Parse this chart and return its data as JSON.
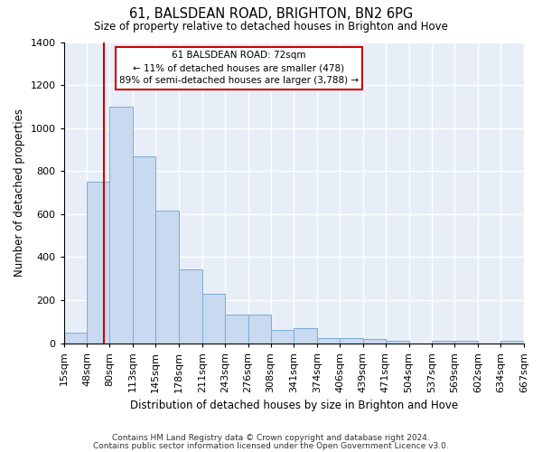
{
  "title1": "61, BALSDEAN ROAD, BRIGHTON, BN2 6PG",
  "title2": "Size of property relative to detached houses in Brighton and Hove",
  "xlabel": "Distribution of detached houses by size in Brighton and Hove",
  "ylabel": "Number of detached properties",
  "bin_labels": [
    "15sqm",
    "48sqm",
    "80sqm",
    "113sqm",
    "145sqm",
    "178sqm",
    "211sqm",
    "243sqm",
    "276sqm",
    "308sqm",
    "341sqm",
    "374sqm",
    "406sqm",
    "439sqm",
    "471sqm",
    "504sqm",
    "537sqm",
    "569sqm",
    "602sqm",
    "634sqm",
    "667sqm"
  ],
  "bin_edges": [
    15,
    48,
    80,
    113,
    145,
    178,
    211,
    243,
    276,
    308,
    341,
    374,
    406,
    439,
    471,
    504,
    537,
    569,
    602,
    634,
    667
  ],
  "bar_heights": [
    50,
    750,
    1100,
    870,
    615,
    345,
    228,
    135,
    135,
    63,
    68,
    25,
    25,
    18,
    13,
    0,
    10,
    10,
    0,
    10
  ],
  "bar_color": "#c8d9f0",
  "bar_edge_color": "#7aacd6",
  "background_color": "#e8eef8",
  "red_line_x": 72,
  "annotation_title": "61 BALSDEAN ROAD: 72sqm",
  "annotation_line1": "← 11% of detached houses are smaller (478)",
  "annotation_line2": "89% of semi-detached houses are larger (3,788) →",
  "annotation_box_color": "#ffffff",
  "annotation_border_color": "#cc0000",
  "ylim": [
    0,
    1400
  ],
  "yticks": [
    0,
    200,
    400,
    600,
    800,
    1000,
    1200,
    1400
  ],
  "footnote1": "Contains HM Land Registry data © Crown copyright and database right 2024.",
  "footnote2": "Contains public sector information licensed under the Open Government Licence v3.0."
}
